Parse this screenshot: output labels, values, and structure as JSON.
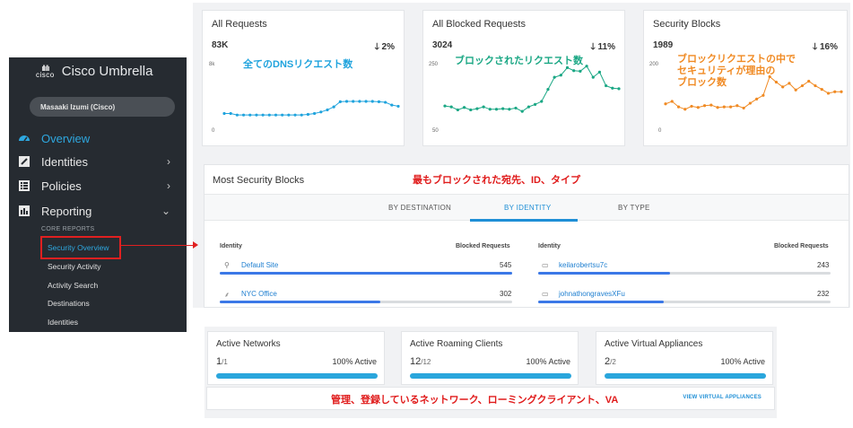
{
  "sidebar": {
    "logo_text": "cisco",
    "app_name": "Cisco Umbrella",
    "user": "Masaaki Izumi (Cisco)",
    "nav": [
      {
        "label": "Overview",
        "icon": "speedometer-icon",
        "active": true
      },
      {
        "label": "Identities",
        "icon": "identity-card-icon",
        "chevron": "›"
      },
      {
        "label": "Policies",
        "icon": "list-icon",
        "chevron": "›"
      },
      {
        "label": "Reporting",
        "icon": "bar-chart-icon",
        "chevron": "⌄"
      }
    ],
    "sub_header": "CORE REPORTS",
    "sub_items": [
      "Security Overview",
      "Security Activity",
      "Activity Search",
      "Destinations",
      "Identities"
    ]
  },
  "cards": [
    {
      "title": "All Requests",
      "count": "83K",
      "change": "2%",
      "change_icon": "arrow-down-icon",
      "y_top": "8k",
      "y_bottom": "0",
      "annotation": "全てのDNSリクエスト数",
      "annotation_color": "#1fa3dd",
      "line_color": "#1fa3dd",
      "series": [
        58,
        58,
        53,
        53,
        53,
        53,
        53,
        53,
        53,
        53,
        53,
        53,
        53,
        55,
        58,
        63,
        70,
        80,
        97,
        98,
        98,
        98,
        98,
        98,
        97,
        95,
        86,
        82
      ]
    },
    {
      "title": "All Blocked Requests",
      "count": "3024",
      "change": "11%",
      "change_icon": "arrow-down-icon",
      "y_top": "250",
      "y_bottom": "50",
      "annotation": "ブロックされたリクエスト数",
      "annotation_color": "#1aa784",
      "line_color": "#1aa784",
      "series": [
        83,
        80,
        70,
        78,
        70,
        74,
        80,
        72,
        72,
        74,
        72,
        76,
        65,
        80,
        88,
        98,
        138,
        178,
        185,
        210,
        200,
        198,
        215,
        178,
        195,
        150,
        142,
        140
      ]
    },
    {
      "title": "Security Blocks",
      "count": "1989",
      "change": "16%",
      "change_icon": "arrow-down-icon",
      "y_top": "200",
      "y_bottom": "0",
      "annotation": "ブロックリクエストの中で\nセキュリティが理由の\nブロック数",
      "annotation_color": "#f08a23",
      "line_color": "#f08a23",
      "series": [
        90,
        98,
        80,
        72,
        82,
        78,
        84,
        86,
        78,
        80,
        80,
        84,
        76,
        92,
        106,
        118,
        180,
        162,
        146,
        158,
        136,
        150,
        165,
        150,
        138,
        125,
        130,
        130
      ]
    }
  ],
  "most_security_blocks": {
    "title": "Most Security Blocks",
    "annotation": "最もブロックされた宛先、ID、タイプ",
    "tabs": [
      "BY DESTINATION",
      "BY IDENTITY",
      "BY TYPE"
    ],
    "active_tab": 1,
    "col_identity": "Identity",
    "col_blocked": "Blocked Requests",
    "left_rows": [
      {
        "name": "Default Site",
        "value": "545",
        "icon": "location-pin-icon",
        "fill": 1.0
      },
      {
        "name": "NYC Office",
        "value": "302",
        "icon": "network-tree-icon",
        "fill": 0.55
      }
    ],
    "right_rows": [
      {
        "name": "keilarobertsu7c",
        "value": "243",
        "icon": "laptop-icon",
        "fill": 0.45
      },
      {
        "name": "johnathongravesXFu",
        "value": "232",
        "icon": "laptop-icon",
        "fill": 0.43
      }
    ]
  },
  "active_cards": [
    {
      "title": "Active Networks",
      "num": "1",
      "den": "/1",
      "pct": "100% Active",
      "fill": 1.0
    },
    {
      "title": "Active Roaming Clients",
      "num": "12",
      "den": "/12",
      "pct": "100% Active",
      "fill": 1.0
    },
    {
      "title": "Active Virtual Appliances",
      "num": "2",
      "den": "/2",
      "pct": "100% Active",
      "fill": 1.0
    }
  ],
  "footer": {
    "annotation": "管理、登録しているネットワーク、ローミングクライアント、VA",
    "link": "VIEW VIRTUAL APPLIANCES"
  }
}
